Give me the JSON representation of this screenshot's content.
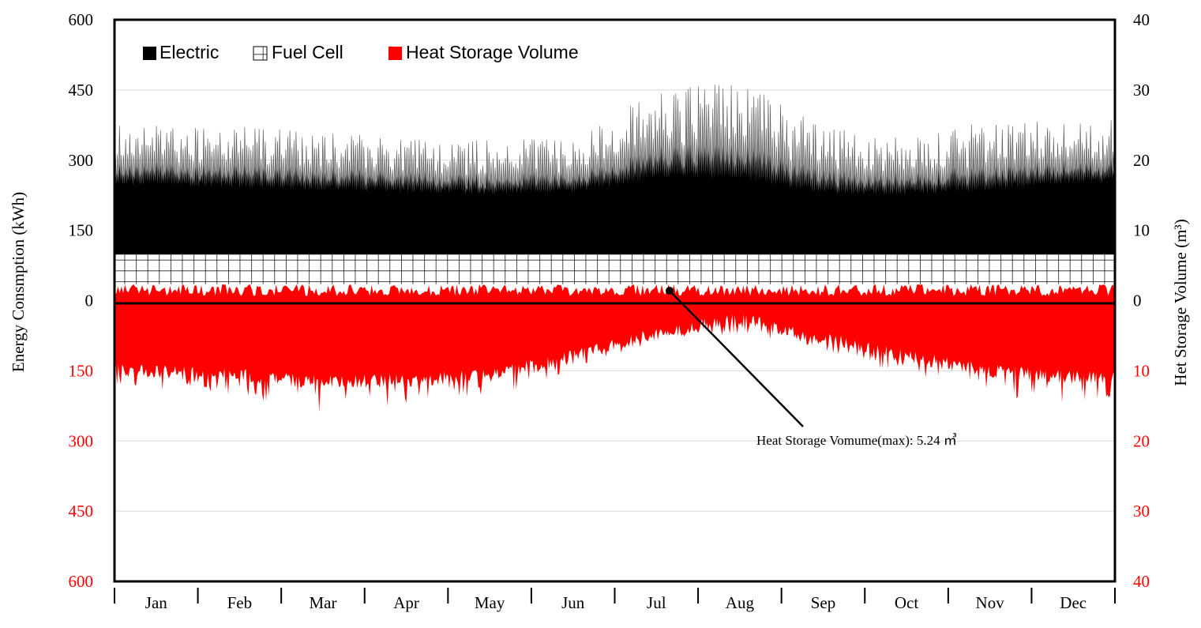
{
  "chart_data": {
    "type": "area",
    "title": "",
    "xlabel": "",
    "ylabel": "Energy Consmption (kWh)",
    "y2label": "Het Storage Volume (m³)",
    "ylim": [
      -600,
      600
    ],
    "y2lim": [
      -40,
      40
    ],
    "left_ticks": [
      {
        "value": 600,
        "label": "600",
        "color": "#000000"
      },
      {
        "value": 450,
        "label": "450",
        "color": "#000000"
      },
      {
        "value": 300,
        "label": "300",
        "color": "#000000"
      },
      {
        "value": 150,
        "label": "150",
        "color": "#000000"
      },
      {
        "value": 0,
        "label": "0",
        "color": "#000000"
      },
      {
        "value": -150,
        "label": "150",
        "color": "#ff0000"
      },
      {
        "value": -300,
        "label": "300",
        "color": "#ff0000"
      },
      {
        "value": -450,
        "label": "450",
        "color": "#ff0000"
      },
      {
        "value": -600,
        "label": "600",
        "color": "#ff0000"
      }
    ],
    "right_ticks": [
      {
        "value": 40,
        "label": "40",
        "color": "#000000"
      },
      {
        "value": 30,
        "label": "30",
        "color": "#000000"
      },
      {
        "value": 20,
        "label": "20",
        "color": "#000000"
      },
      {
        "value": 10,
        "label": "10",
        "color": "#000000"
      },
      {
        "value": 0,
        "label": "0",
        "color": "#000000"
      },
      {
        "value": -10,
        "label": "10",
        "color": "#ff0000"
      },
      {
        "value": -20,
        "label": "20",
        "color": "#ff0000"
      },
      {
        "value": -30,
        "label": "30",
        "color": "#ff0000"
      },
      {
        "value": -40,
        "label": "40",
        "color": "#ff0000"
      }
    ],
    "categories": [
      "Jan",
      "Feb",
      "Mar",
      "Apr",
      "May",
      "Jun",
      "Jul",
      "Aug",
      "Sep",
      "Oct",
      "Nov",
      "Dec"
    ],
    "legend": [
      {
        "name": "Electric",
        "pattern": "solid",
        "color": "#000000"
      },
      {
        "name": "Fuel Cell",
        "pattern": "grid",
        "color": "#000000"
      },
      {
        "name": "Heat Storage Volume",
        "pattern": "solid",
        "color": "#ff0000"
      }
    ],
    "legend_position": "top-left",
    "series": [
      {
        "name": "Fuel Cell",
        "base_kwh": 0,
        "level_kwh": 100,
        "unit": "kWh"
      },
      {
        "name": "Electric",
        "base_kwh": 100,
        "monthly_base_kwh": [
          250,
          245,
          240,
          235,
          230,
          235,
          265,
          265,
          230,
          230,
          240,
          255
        ],
        "monthly_peak_kwh": [
          380,
          375,
          365,
          350,
          345,
          345,
          450,
          470,
          370,
          355,
          385,
          390
        ],
        "unit": "kWh"
      },
      {
        "name": "Heat Storage Volume",
        "monthly_min_kwh": [
          -190,
          -205,
          -240,
          -225,
          -210,
          -150,
          -90,
          -70,
          -110,
          -160,
          -210,
          -220
        ],
        "monthly_base_kwh": [
          -150,
          -160,
          -175,
          -170,
          -160,
          -120,
          -70,
          -40,
          -80,
          -120,
          -150,
          -165
        ],
        "positive_ripple_kwh": 35,
        "unit": "kWh"
      }
    ],
    "annotation": {
      "text": "Heat Storage  Vomume(max):  5.24  ㎥",
      "target_month": "Jul"
    },
    "grid": true,
    "colors": {
      "electric": "#000000",
      "fuel_cell": "#000000",
      "heat": "#ff0000",
      "grid": "#d9d9d9"
    }
  }
}
